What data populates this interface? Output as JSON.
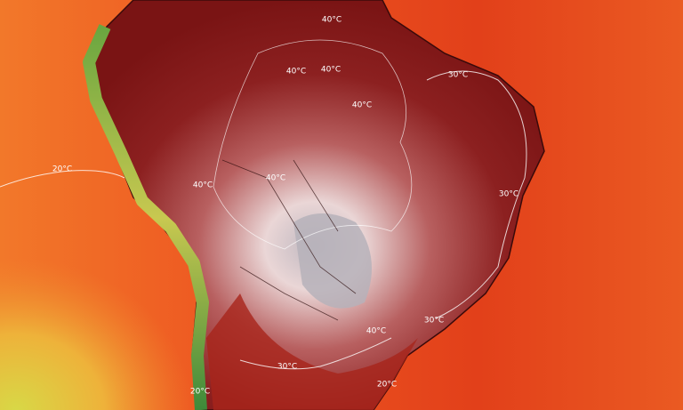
{
  "map": {
    "isotherm_labels": [
      "40°C",
      "40°C",
      "40°C",
      "40°C",
      "30°C",
      "20°C",
      "40°C",
      "40°C",
      "30°C",
      "30°C",
      "40°C",
      "30°C",
      "20°C",
      "20°C"
    ]
  }
}
